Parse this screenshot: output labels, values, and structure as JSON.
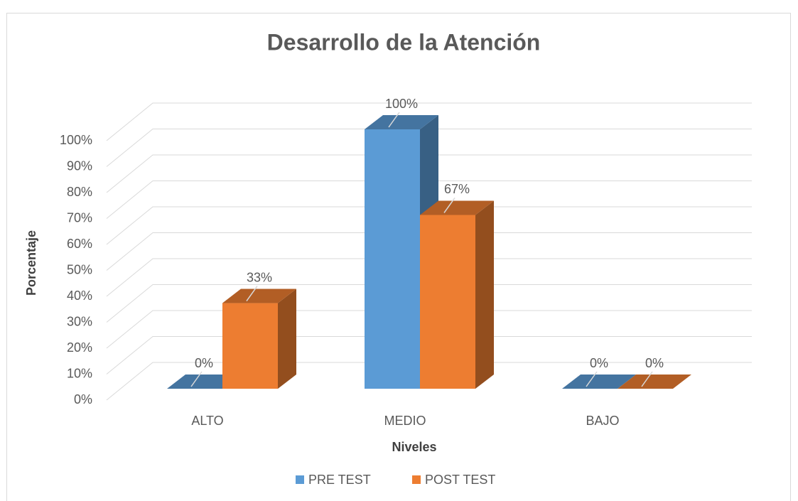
{
  "chart_data": {
    "type": "bar3d",
    "title": "Desarrollo de la Atención",
    "xlabel": "Niveles",
    "ylabel": "Porcentaje",
    "categories": [
      "ALTO",
      "MEDIO",
      "BAJO"
    ],
    "series": [
      {
        "name": "PRE TEST",
        "color": "#5b9bd5",
        "values": [
          0,
          100,
          0
        ],
        "value_labels": [
          "0%",
          "100%",
          "0%"
        ]
      },
      {
        "name": "POST TEST",
        "color": "#ed7d31",
        "values": [
          33,
          67,
          0
        ],
        "value_labels": [
          "33%",
          "67%",
          "0%"
        ]
      }
    ],
    "ylim": [
      0,
      100
    ],
    "yticks": [
      {
        "value": 0,
        "label": "0%"
      },
      {
        "value": 10,
        "label": "10%"
      },
      {
        "value": 20,
        "label": "20%"
      },
      {
        "value": 30,
        "label": "30%"
      },
      {
        "value": 40,
        "label": "40%"
      },
      {
        "value": 50,
        "label": "50%"
      },
      {
        "value": 60,
        "label": "60%"
      },
      {
        "value": 70,
        "label": "70%"
      },
      {
        "value": 80,
        "label": "80%"
      },
      {
        "value": 90,
        "label": "90%"
      },
      {
        "value": 100,
        "label": "100%"
      }
    ],
    "grid": true,
    "legend": "bottom"
  }
}
